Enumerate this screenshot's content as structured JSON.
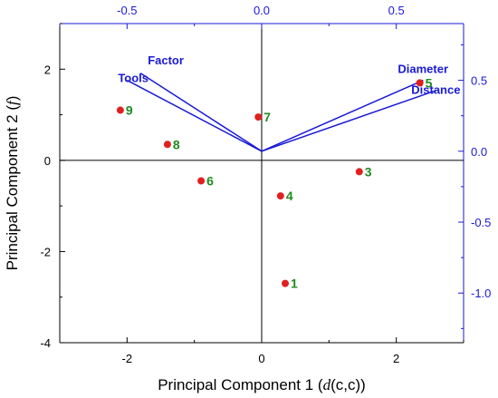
{
  "chart_data": {
    "type": "scatter",
    "title": "",
    "xlabel": {
      "pre": "Principal Component 1 (",
      "italic": "d",
      "post": "(c,c))"
    },
    "ylabel": {
      "pre": "Principal Component 2 (",
      "italic": "f",
      "post": ")"
    },
    "xlim": [
      -3,
      3
    ],
    "ylim": [
      -4,
      3
    ],
    "xticks": [
      -2,
      0,
      2
    ],
    "yticks": [
      -4,
      -2,
      0,
      2
    ],
    "top_axis": {
      "lim": [
        -0.75,
        0.75
      ],
      "ticks": [
        "-0.5",
        "0.0",
        "0.5"
      ],
      "tick_values": [
        -0.5,
        0,
        0.5
      ]
    },
    "right_axis": {
      "lim": [
        -1.35,
        0.9
      ],
      "ticks": [
        "0.5",
        "0.0",
        "-0.5",
        "-1.0"
      ],
      "tick_values": [
        0.5,
        0,
        -0.5,
        -1.0
      ]
    },
    "scores": [
      {
        "label": "1",
        "x": 0.35,
        "y": -2.7
      },
      {
        "label": "3",
        "x": 1.45,
        "y": -0.25
      },
      {
        "label": "4",
        "x": 0.28,
        "y": -0.78
      },
      {
        "label": "5",
        "x": 2.35,
        "y": 1.7
      },
      {
        "label": "6",
        "x": -0.9,
        "y": -0.45
      },
      {
        "label": "7",
        "x": -0.05,
        "y": 0.95
      },
      {
        "label": "8",
        "x": -1.4,
        "y": 0.35
      },
      {
        "label": "9",
        "x": -2.1,
        "y": 1.1
      }
    ],
    "loadings": [
      {
        "label": "Factor",
        "x": -0.45,
        "y": 0.55
      },
      {
        "label": "Tools",
        "x": -0.5,
        "y": 0.5
      },
      {
        "label": "Diameter",
        "x": 0.6,
        "y": 0.5
      },
      {
        "label": "Distance",
        "x": 0.65,
        "y": 0.43
      }
    ],
    "colors": {
      "points": "#e02020",
      "point_labels": "#1f8a1f",
      "loadings": "#1a1ad6",
      "axes": "#000000"
    }
  }
}
